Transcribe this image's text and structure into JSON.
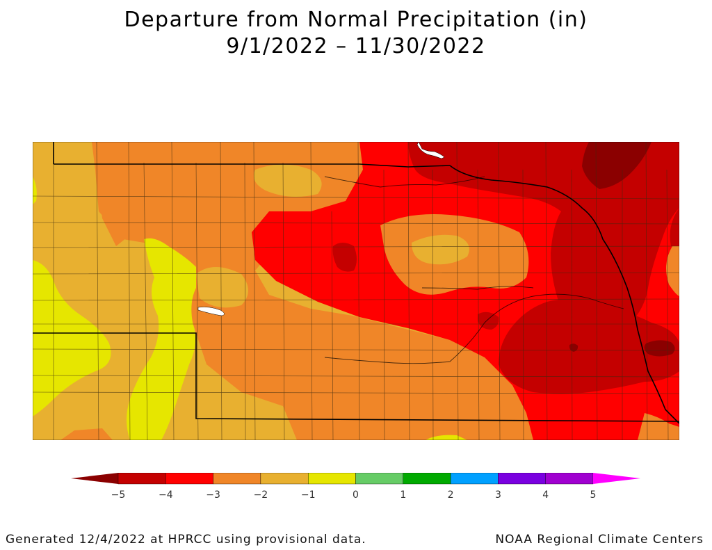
{
  "title": {
    "line1": "Departure from Normal Precipitation (in)",
    "line2": "9/1/2022 – 11/30/2022"
  },
  "legend": {
    "ticks": [
      "−5",
      "−4",
      "−3",
      "−2",
      "−1",
      "0",
      "1",
      "2",
      "3",
      "4",
      "5"
    ],
    "colors": [
      "#c40000",
      "#ff0000",
      "#f08628",
      "#e8b030",
      "#e6e600",
      "#66cc66",
      "#00aa00",
      "#00a0ff",
      "#7a00e0",
      "#a000d0"
    ],
    "below_color": "#8b0000",
    "above_color": "#ff00ff"
  },
  "map": {
    "palette": {
      "lt_m4": "#c40000",
      "m4_m3": "#ff0000",
      "m3_m2": "#f08628",
      "m2_m1": "#e8b030",
      "m1_0": "#e6e600",
      "lt_m5": "#8b0000"
    }
  },
  "footer": {
    "left": "Generated 12/4/2022 at HPRCC using provisional data.",
    "right": "NOAA Regional Climate Centers"
  }
}
